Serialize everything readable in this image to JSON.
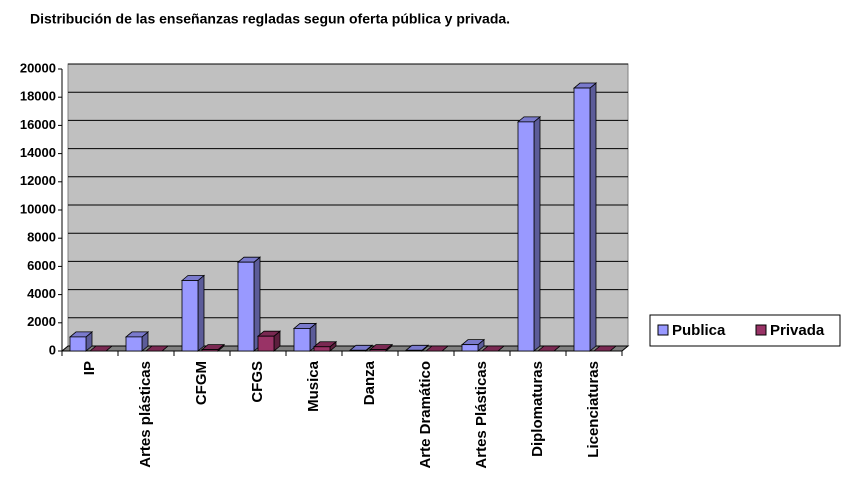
{
  "chart_data": {
    "type": "bar",
    "title": "Distribución de las enseñanzas regladas segun oferta pública y privada.",
    "categories": [
      "IP",
      "Artes plásticas",
      "CFGM",
      "CFGS",
      "Musica",
      "Danza",
      "Arte Dramático",
      "Artes Plásticas",
      "Diplomaturas",
      "Licenciaturas"
    ],
    "series": [
      {
        "name": "Publica",
        "color": "#9999ff",
        "values": [
          1000,
          1000,
          5000,
          6300,
          1600,
          50,
          50,
          450,
          16250,
          18650
        ]
      },
      {
        "name": "Privada",
        "color": "#993366",
        "values": [
          0,
          0,
          100,
          1050,
          300,
          100,
          0,
          0,
          0,
          0
        ]
      }
    ],
    "ylim": [
      0,
      20000
    ],
    "yticks": [
      0,
      2000,
      4000,
      6000,
      8000,
      10000,
      12000,
      14000,
      16000,
      18000,
      20000
    ],
    "grid": true,
    "legend": "right"
  }
}
